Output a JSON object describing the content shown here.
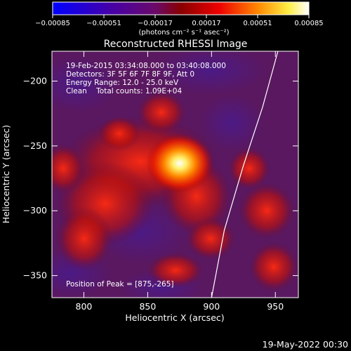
{
  "colorbar": {
    "ticks": [
      "-0.00085",
      "-0.00051",
      "-0.00017",
      "0.00017",
      "0.00051",
      "0.00085"
    ],
    "unit_label": "(photons cm⁻² s⁻¹ asec⁻²)",
    "range": [
      -0.00085,
      0.00085
    ]
  },
  "chart_data": {
    "type": "heatmap",
    "title": "Reconstructed RHESSI Image",
    "xlabel": "Heliocentric X (arcsec)",
    "ylabel": "Heliocentric Y (arcsec)",
    "xlim": [
      775,
      968
    ],
    "ylim": [
      -367,
      -177
    ],
    "xticks": [
      800,
      850,
      900,
      950
    ],
    "yticks": [
      -200,
      -250,
      -300,
      -350
    ],
    "info_lines": [
      "19-Feb-2015 03:34:08.000 to 03:40:08.000",
      "Detectors: 3F 5F 6F 7F 8F 9F, Att 0",
      "Energy Range: 12.0 - 25.0 keV",
      "Clean    Total counts: 1.09E+04"
    ],
    "peak_label": "Position of Peak = [875,-265]",
    "peak": [
      875,
      -265
    ],
    "limb_curve": [
      [
        952,
        -177
      ],
      [
        940,
        -220
      ],
      [
        925,
        -265
      ],
      [
        910,
        -315
      ],
      [
        900,
        -367
      ]
    ]
  },
  "footer": {
    "timestamp": "19-May-2022 00:30"
  }
}
